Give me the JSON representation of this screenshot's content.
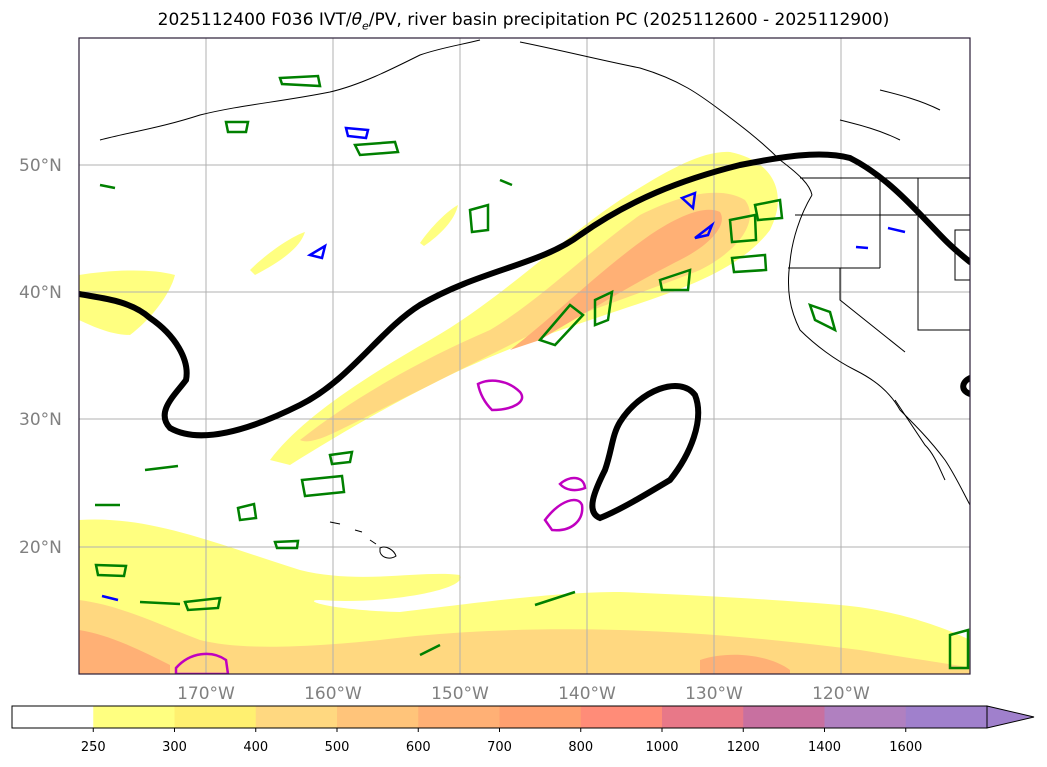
{
  "title": {
    "prefix": "2025112400 F036 IVT/",
    "theta": "θ",
    "theta_sub": "e",
    "suffix": "/PV, river basin precipitation PC (2025112600 - 2025112900)"
  },
  "map": {
    "lon_range": [
      -180,
      -110
    ],
    "lat_range": [
      10,
      60
    ],
    "lat_labels": [
      {
        "lat": 50,
        "label": "50°N"
      },
      {
        "lat": 40,
        "label": "40°N"
      },
      {
        "lat": 30,
        "label": "30°N"
      },
      {
        "lat": 20,
        "label": "20°N"
      }
    ],
    "lon_labels": [
      {
        "lon": -170,
        "label": "170°W"
      },
      {
        "lon": -160,
        "label": "160°W"
      },
      {
        "lon": -150,
        "label": "150°W"
      },
      {
        "lon": -140,
        "label": "140°W"
      },
      {
        "lon": -130,
        "label": "130°W"
      },
      {
        "lon": -120,
        "label": "120°W"
      }
    ],
    "colors": {
      "ivt_250": "#ffff80",
      "ivt_300": "#fff07a",
      "ivt_400": "#ffd880",
      "ivt_500": "#ffc47a",
      "ivt_600": "#ffb075",
      "pv_contour": "#000000",
      "theta_contour": "#008000",
      "blue_contour": "#0000ff",
      "magenta_contour": "#c000c0",
      "gridline": "#b0b0b0",
      "coast": "#000000"
    }
  },
  "colorbar": {
    "ticks": [
      "250",
      "300",
      "400",
      "500",
      "600",
      "700",
      "800",
      "1000",
      "1200",
      "1400",
      "1600"
    ],
    "colors": [
      "#ffffff",
      "#ffff80",
      "#fff070",
      "#ffd880",
      "#ffc47a",
      "#ffb075",
      "#ffa070",
      "#ff8c78",
      "#e87888",
      "#c870a0",
      "#b080c0",
      "#a080cc"
    ]
  }
}
